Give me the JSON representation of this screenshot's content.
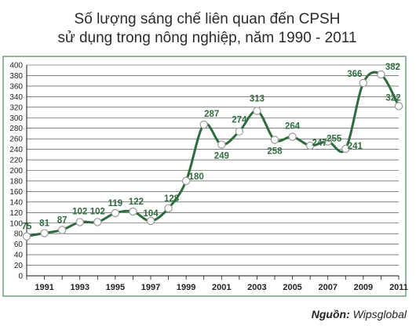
{
  "title_lines": [
    "Số lượng sáng chế liên quan đến CPSH",
    "sử dụng trong nông nghiệp, năm 1990 - 2011"
  ],
  "source": {
    "label": "Nguồn:",
    "value": "Wipsglobal"
  },
  "colors": {
    "line": "#2e6b3c",
    "frame": "#4e8a57",
    "marker_fill": "#ffffff",
    "label": "#2f6e3f",
    "grid": "#333333"
  },
  "chart_data": {
    "type": "line",
    "title": "Số lượng sáng chế liên quan đến CPSH sử dụng trong nông nghiệp, năm 1990 - 2011",
    "x": [
      1990,
      1991,
      1992,
      1993,
      1994,
      1995,
      1996,
      1997,
      1998,
      1999,
      2000,
      2001,
      2002,
      2003,
      2004,
      2005,
      2006,
      2007,
      2008,
      2009,
      2010,
      2011
    ],
    "values": [
      75,
      81,
      87,
      102,
      102,
      119,
      122,
      104,
      128,
      180,
      287,
      249,
      274,
      313,
      258,
      264,
      247,
      255,
      241,
      366,
      382,
      322
    ],
    "x_tick_labels": [
      "1991",
      "1993",
      "1995",
      "1997",
      "1999",
      "2001",
      "2003",
      "2005",
      "2007",
      "2009",
      "2011"
    ],
    "y_ticks": [
      0,
      20,
      40,
      60,
      80,
      100,
      120,
      140,
      160,
      180,
      200,
      220,
      240,
      260,
      280,
      300,
      320,
      340,
      360,
      380,
      400
    ],
    "ylim": [
      0,
      400
    ],
    "xlim": [
      1990,
      2011
    ],
    "grid": true,
    "legend": "none",
    "data_labels": [
      "75",
      "81",
      "87",
      "102",
      "102",
      "119",
      "122",
      "104",
      "128",
      "180",
      "287",
      "249",
      "274",
      "313",
      "258",
      "264",
      "247",
      "255",
      "241",
      "366",
      "382",
      "322"
    ],
    "markers": "open-circle"
  }
}
